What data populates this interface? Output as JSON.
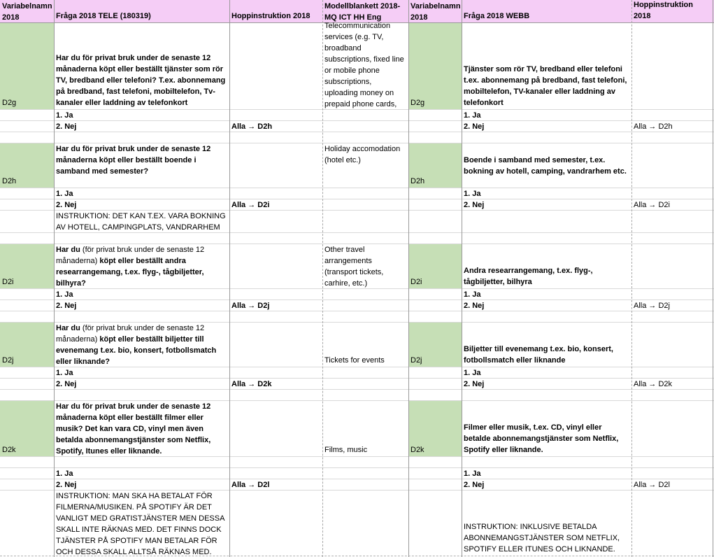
{
  "headers": {
    "var_name_a": "Variabelnamn\n2018",
    "question_tele": "Fråga 2018 TELE (180319)",
    "hopp_a": "Hoppinstruktion 2018",
    "model_form": "Modellblankett 2018-\nMQ ICT HH Eng",
    "var_name_b": "Variabelnamn\n2018",
    "question_webb": "Fråga 2018 WEBB",
    "hopp_b": "Hoppinstruktion 2018"
  },
  "rows": [
    {
      "var": "D2g",
      "question_tele": "Har du för privat bruk under de senaste 12 månaderna köpt eller beställt tjänster som rör TV, bredband eller telefoni? T.ex. abonnemang på bredband, fast telefoni, mobiltelefon, Tv-kanaler eller laddning av telefonkort",
      "model": "Telecommunication services (e.g. TV, broadband subscriptions, fixed line or mobile phone subscriptions, uploading money on prepaid phone cards,",
      "question_webb": "Tjänster som rör TV, bredband eller telefoni t.ex. abonnemang på bredband, fast telefoni, mobiltelefon, TV-kanaler eller laddning av telefonkort",
      "opt1": "1. Ja",
      "opt2": "2. Nej",
      "hopp": "Alla → D2h"
    },
    {
      "var": "D2h",
      "question_tele": "Har du för privat bruk under de senaste 12 månaderna köpt eller beställt boende i samband med semester?",
      "model": "Holiday accomodation (hotel etc.)",
      "question_webb": "Boende i samband med semester, t.ex. bokning av hotell, camping, vandrarhem etc.",
      "opt1": "1. Ja",
      "opt2": "2. Nej",
      "hopp": "Alla → D2i",
      "instruction_tele": "INSTRUKTION: DET KAN T.EX. VARA BOKNING AV HOTELL, CAMPINGPLATS, VANDRARHEM ETC."
    },
    {
      "var": "D2i",
      "question_tele_pre": "Har du",
      "question_tele_paren": " (för privat bruk under de senaste 12 månaderna) ",
      "question_tele_post": "köpt eller beställt andra researrangemang, t.ex. flyg-, tågbiljetter, bilhyra?",
      "model": "Other travel arrangements (transport tickets, carhire, etc.)",
      "question_webb": "Andra researrangemang, t.ex. flyg-, tågbiljetter, bilhyra",
      "opt1": "1. Ja",
      "opt2": "2. Nej",
      "hopp": "Alla → D2j"
    },
    {
      "var": "D2j",
      "question_tele_pre": "Har du",
      "question_tele_paren": " (för privat bruk under de senaste 12 månaderna) ",
      "question_tele_post": "köpt eller beställt biljetter till evenemang t.ex. bio, konsert, fotbollsmatch eller liknande?",
      "model": "Tickets for events",
      "question_webb": "Biljetter till evenemang t.ex. bio, konsert, fotbollsmatch eller liknande",
      "opt1": "1. Ja",
      "opt2": "2. Nej",
      "hopp": "Alla → D2k"
    },
    {
      "var": "D2k",
      "question_tele": "Har du för privat bruk under de senaste 12 månaderna köpt eller beställt filmer eller musik? Det kan vara CD, vinyl men även betalda abonnemangstjänster som Netflix, Spotify, Itunes eller liknande.",
      "model": "Films, music",
      "question_webb": "Filmer eller musik, t.ex. CD, vinyl eller betalde abonnemangstjänster som Netflix, Spotify eller liknande.",
      "opt1": "1. Ja",
      "opt2": "2. Nej",
      "hopp": "Alla → D2l",
      "instruction_tele": "INSTRUKTION: MAN SKA HA BETALAT FÖR FILMERNA/MUSIKEN. PÅ SPOTIFY ÄR DET VANLIGT MED GRATISTJÄNSTER MEN DESSA SKALL INTE RÄKNAS MED. DET FINNS DOCK TJÄNSTER PÅ SPOTIFY MAN BETALAR FÖR OCH DESSA SKALL ALLTSÅ RÄKNAS MED.",
      "instruction_webb": "INSTRUKTION: INKLUSIVE BETALDA ABONNEMANGSTJÄNSTER SOM NETFLIX, SPOTIFY ELLER ITUNES OCH LIKNANDE."
    }
  ]
}
